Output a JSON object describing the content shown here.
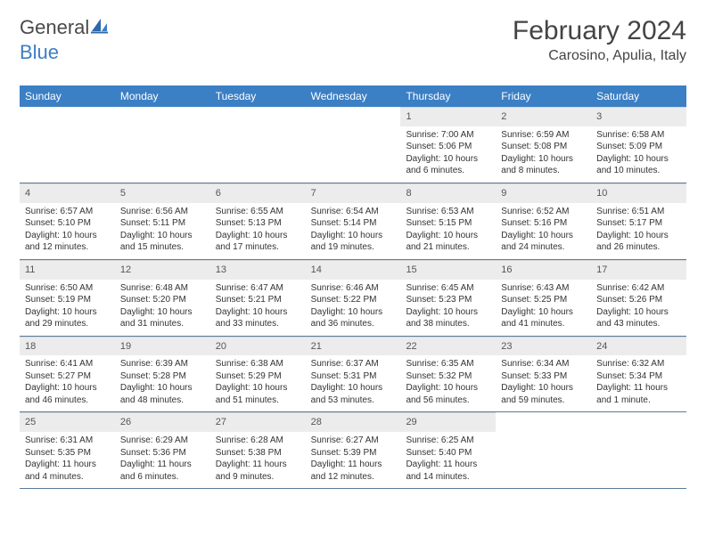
{
  "logo": {
    "part1": "General",
    "part2": "Blue"
  },
  "header": {
    "title": "February 2024",
    "location": "Carosino, Apulia, Italy"
  },
  "colors": {
    "headerbar": "#3b7fc4",
    "daynum_bg": "#ececec",
    "rule": "#5a7a99"
  },
  "weekdays": [
    "Sunday",
    "Monday",
    "Tuesday",
    "Wednesday",
    "Thursday",
    "Friday",
    "Saturday"
  ],
  "weeks": [
    [
      {
        "n": "",
        "sr": "",
        "ss": "",
        "dl1": "",
        "dl2": ""
      },
      {
        "n": "",
        "sr": "",
        "ss": "",
        "dl1": "",
        "dl2": ""
      },
      {
        "n": "",
        "sr": "",
        "ss": "",
        "dl1": "",
        "dl2": ""
      },
      {
        "n": "",
        "sr": "",
        "ss": "",
        "dl1": "",
        "dl2": ""
      },
      {
        "n": "1",
        "sr": "Sunrise: 7:00 AM",
        "ss": "Sunset: 5:06 PM",
        "dl1": "Daylight: 10 hours",
        "dl2": "and 6 minutes."
      },
      {
        "n": "2",
        "sr": "Sunrise: 6:59 AM",
        "ss": "Sunset: 5:08 PM",
        "dl1": "Daylight: 10 hours",
        "dl2": "and 8 minutes."
      },
      {
        "n": "3",
        "sr": "Sunrise: 6:58 AM",
        "ss": "Sunset: 5:09 PM",
        "dl1": "Daylight: 10 hours",
        "dl2": "and 10 minutes."
      }
    ],
    [
      {
        "n": "4",
        "sr": "Sunrise: 6:57 AM",
        "ss": "Sunset: 5:10 PM",
        "dl1": "Daylight: 10 hours",
        "dl2": "and 12 minutes."
      },
      {
        "n": "5",
        "sr": "Sunrise: 6:56 AM",
        "ss": "Sunset: 5:11 PM",
        "dl1": "Daylight: 10 hours",
        "dl2": "and 15 minutes."
      },
      {
        "n": "6",
        "sr": "Sunrise: 6:55 AM",
        "ss": "Sunset: 5:13 PM",
        "dl1": "Daylight: 10 hours",
        "dl2": "and 17 minutes."
      },
      {
        "n": "7",
        "sr": "Sunrise: 6:54 AM",
        "ss": "Sunset: 5:14 PM",
        "dl1": "Daylight: 10 hours",
        "dl2": "and 19 minutes."
      },
      {
        "n": "8",
        "sr": "Sunrise: 6:53 AM",
        "ss": "Sunset: 5:15 PM",
        "dl1": "Daylight: 10 hours",
        "dl2": "and 21 minutes."
      },
      {
        "n": "9",
        "sr": "Sunrise: 6:52 AM",
        "ss": "Sunset: 5:16 PM",
        "dl1": "Daylight: 10 hours",
        "dl2": "and 24 minutes."
      },
      {
        "n": "10",
        "sr": "Sunrise: 6:51 AM",
        "ss": "Sunset: 5:17 PM",
        "dl1": "Daylight: 10 hours",
        "dl2": "and 26 minutes."
      }
    ],
    [
      {
        "n": "11",
        "sr": "Sunrise: 6:50 AM",
        "ss": "Sunset: 5:19 PM",
        "dl1": "Daylight: 10 hours",
        "dl2": "and 29 minutes."
      },
      {
        "n": "12",
        "sr": "Sunrise: 6:48 AM",
        "ss": "Sunset: 5:20 PM",
        "dl1": "Daylight: 10 hours",
        "dl2": "and 31 minutes."
      },
      {
        "n": "13",
        "sr": "Sunrise: 6:47 AM",
        "ss": "Sunset: 5:21 PM",
        "dl1": "Daylight: 10 hours",
        "dl2": "and 33 minutes."
      },
      {
        "n": "14",
        "sr": "Sunrise: 6:46 AM",
        "ss": "Sunset: 5:22 PM",
        "dl1": "Daylight: 10 hours",
        "dl2": "and 36 minutes."
      },
      {
        "n": "15",
        "sr": "Sunrise: 6:45 AM",
        "ss": "Sunset: 5:23 PM",
        "dl1": "Daylight: 10 hours",
        "dl2": "and 38 minutes."
      },
      {
        "n": "16",
        "sr": "Sunrise: 6:43 AM",
        "ss": "Sunset: 5:25 PM",
        "dl1": "Daylight: 10 hours",
        "dl2": "and 41 minutes."
      },
      {
        "n": "17",
        "sr": "Sunrise: 6:42 AM",
        "ss": "Sunset: 5:26 PM",
        "dl1": "Daylight: 10 hours",
        "dl2": "and 43 minutes."
      }
    ],
    [
      {
        "n": "18",
        "sr": "Sunrise: 6:41 AM",
        "ss": "Sunset: 5:27 PM",
        "dl1": "Daylight: 10 hours",
        "dl2": "and 46 minutes."
      },
      {
        "n": "19",
        "sr": "Sunrise: 6:39 AM",
        "ss": "Sunset: 5:28 PM",
        "dl1": "Daylight: 10 hours",
        "dl2": "and 48 minutes."
      },
      {
        "n": "20",
        "sr": "Sunrise: 6:38 AM",
        "ss": "Sunset: 5:29 PM",
        "dl1": "Daylight: 10 hours",
        "dl2": "and 51 minutes."
      },
      {
        "n": "21",
        "sr": "Sunrise: 6:37 AM",
        "ss": "Sunset: 5:31 PM",
        "dl1": "Daylight: 10 hours",
        "dl2": "and 53 minutes."
      },
      {
        "n": "22",
        "sr": "Sunrise: 6:35 AM",
        "ss": "Sunset: 5:32 PM",
        "dl1": "Daylight: 10 hours",
        "dl2": "and 56 minutes."
      },
      {
        "n": "23",
        "sr": "Sunrise: 6:34 AM",
        "ss": "Sunset: 5:33 PM",
        "dl1": "Daylight: 10 hours",
        "dl2": "and 59 minutes."
      },
      {
        "n": "24",
        "sr": "Sunrise: 6:32 AM",
        "ss": "Sunset: 5:34 PM",
        "dl1": "Daylight: 11 hours",
        "dl2": "and 1 minute."
      }
    ],
    [
      {
        "n": "25",
        "sr": "Sunrise: 6:31 AM",
        "ss": "Sunset: 5:35 PM",
        "dl1": "Daylight: 11 hours",
        "dl2": "and 4 minutes."
      },
      {
        "n": "26",
        "sr": "Sunrise: 6:29 AM",
        "ss": "Sunset: 5:36 PM",
        "dl1": "Daylight: 11 hours",
        "dl2": "and 6 minutes."
      },
      {
        "n": "27",
        "sr": "Sunrise: 6:28 AM",
        "ss": "Sunset: 5:38 PM",
        "dl1": "Daylight: 11 hours",
        "dl2": "and 9 minutes."
      },
      {
        "n": "28",
        "sr": "Sunrise: 6:27 AM",
        "ss": "Sunset: 5:39 PM",
        "dl1": "Daylight: 11 hours",
        "dl2": "and 12 minutes."
      },
      {
        "n": "29",
        "sr": "Sunrise: 6:25 AM",
        "ss": "Sunset: 5:40 PM",
        "dl1": "Daylight: 11 hours",
        "dl2": "and 14 minutes."
      },
      {
        "n": "",
        "sr": "",
        "ss": "",
        "dl1": "",
        "dl2": ""
      },
      {
        "n": "",
        "sr": "",
        "ss": "",
        "dl1": "",
        "dl2": ""
      }
    ]
  ]
}
